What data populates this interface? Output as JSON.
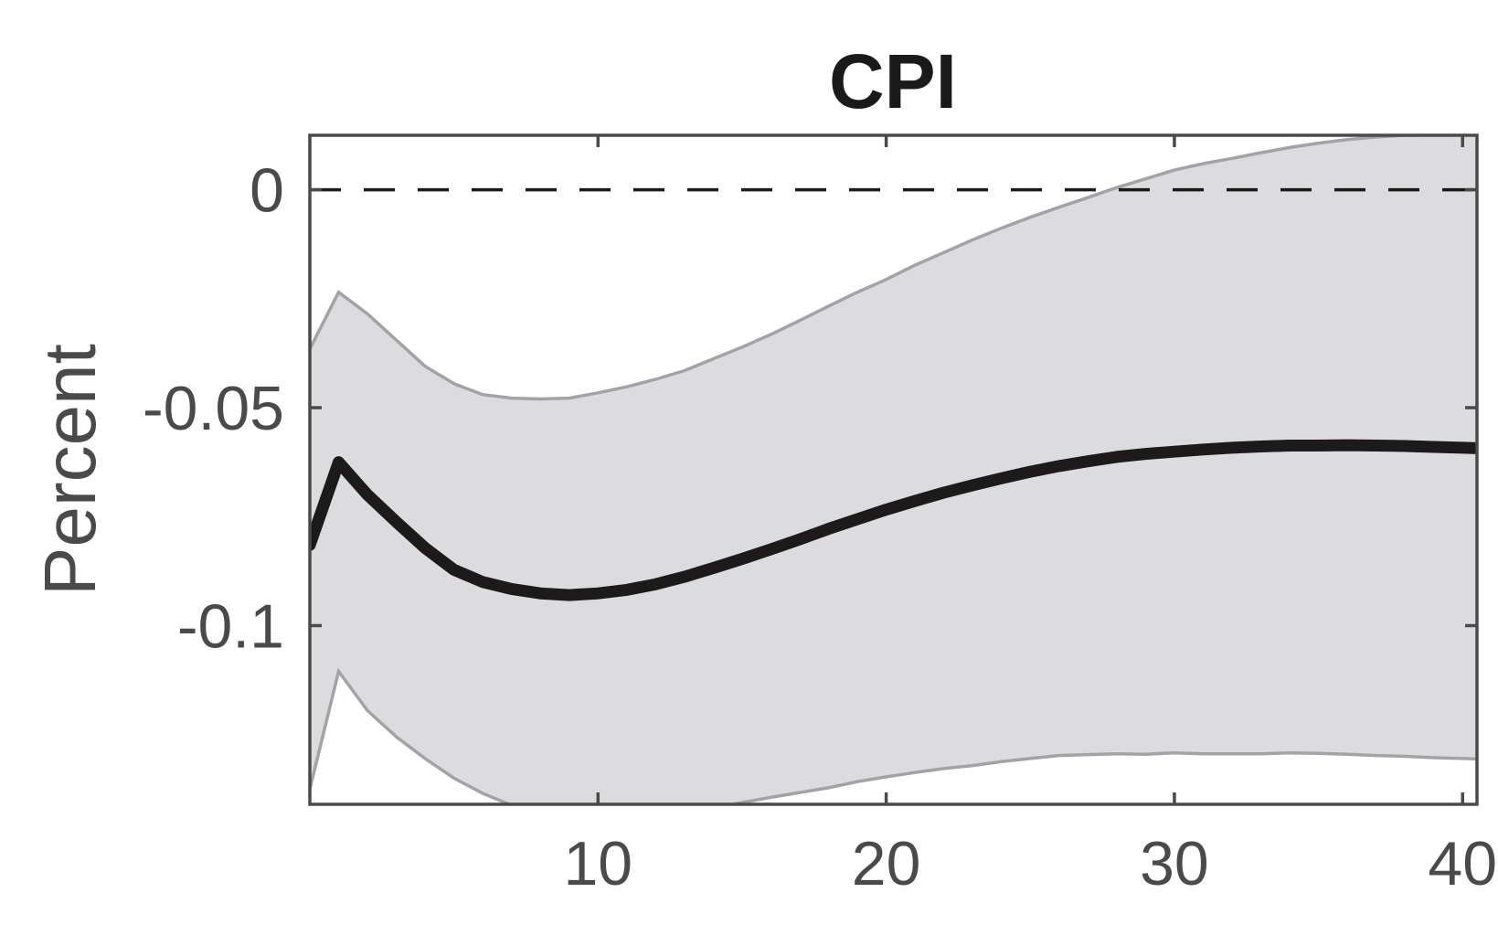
{
  "chart_data": {
    "type": "line",
    "title": "CPI",
    "xlabel": "",
    "ylabel": "Percent",
    "xlim": [
      0,
      40.5
    ],
    "ylim": [
      -0.141,
      0.0125
    ],
    "x_ticks": [
      10,
      20,
      30,
      40
    ],
    "x_tick_labels": [
      "10",
      "20",
      "30",
      "40"
    ],
    "y_ticks": [
      0,
      -0.05,
      -0.1
    ],
    "y_tick_labels": [
      "0",
      "-0.05",
      "-0.1"
    ],
    "grid": false,
    "legend": "none",
    "reference_line": {
      "y": 0,
      "style": "dashed"
    },
    "colors": {
      "band_fill": "#dcdcde",
      "band_edge": "#a3a3a6",
      "median": "#1c1a1b",
      "axes": "#4a4a4a",
      "reference": "#1a1a1a"
    },
    "x": [
      0,
      1,
      2,
      3,
      4,
      5,
      6,
      7,
      8,
      9,
      10,
      11,
      12,
      13,
      14,
      15,
      16,
      17,
      18,
      19,
      20,
      21,
      22,
      23,
      24,
      25,
      26,
      27,
      28,
      29,
      30,
      31,
      32,
      33,
      34,
      35,
      36,
      37,
      38,
      39,
      40,
      40.5
    ],
    "series": [
      {
        "role": "median",
        "values": [
          -0.0815,
          -0.0625,
          -0.07,
          -0.0762,
          -0.0822,
          -0.0872,
          -0.09,
          -0.0916,
          -0.0926,
          -0.093,
          -0.0926,
          -0.0918,
          -0.0905,
          -0.0888,
          -0.0868,
          -0.0847,
          -0.0825,
          -0.0802,
          -0.0778,
          -0.0756,
          -0.0734,
          -0.0714,
          -0.0695,
          -0.0678,
          -0.0662,
          -0.0647,
          -0.0634,
          -0.0623,
          -0.0613,
          -0.0606,
          -0.0601,
          -0.0596,
          -0.0592,
          -0.0589,
          -0.0587,
          -0.0587,
          -0.0586,
          -0.0587,
          -0.0588,
          -0.059,
          -0.0592,
          -0.0593
        ]
      },
      {
        "role": "upper-band",
        "values": [
          -0.0365,
          -0.0235,
          -0.0285,
          -0.0345,
          -0.0405,
          -0.0445,
          -0.047,
          -0.0478,
          -0.048,
          -0.0478,
          -0.0466,
          -0.0452,
          -0.0435,
          -0.0415,
          -0.0388,
          -0.0361,
          -0.0332,
          -0.03,
          -0.0267,
          -0.0235,
          -0.0206,
          -0.0173,
          -0.0144,
          -0.0115,
          -0.0088,
          -0.0063,
          -0.004,
          -0.0018,
          0.0005,
          0.0025,
          0.0045,
          0.006,
          0.0072,
          0.0085,
          0.0097,
          0.0107,
          0.0115,
          0.0121,
          0.0125,
          0.0126,
          0.0127,
          0.0127
        ]
      },
      {
        "role": "lower-band",
        "values": [
          -0.1375,
          -0.1105,
          -0.1195,
          -0.1255,
          -0.1305,
          -0.135,
          -0.1385,
          -0.1412,
          -0.1433,
          -0.1445,
          -0.1448,
          -0.1445,
          -0.1439,
          -0.143,
          -0.1418,
          -0.1406,
          -0.1394,
          -0.1383,
          -0.1372,
          -0.1358,
          -0.1347,
          -0.1337,
          -0.1328,
          -0.1321,
          -0.1312,
          -0.1305,
          -0.1298,
          -0.1296,
          -0.1294,
          -0.1295,
          -0.1292,
          -0.1294,
          -0.1294,
          -0.1294,
          -0.1292,
          -0.1293,
          -0.1295,
          -0.1298,
          -0.13,
          -0.1303,
          -0.1305,
          -0.1306
        ]
      }
    ]
  }
}
